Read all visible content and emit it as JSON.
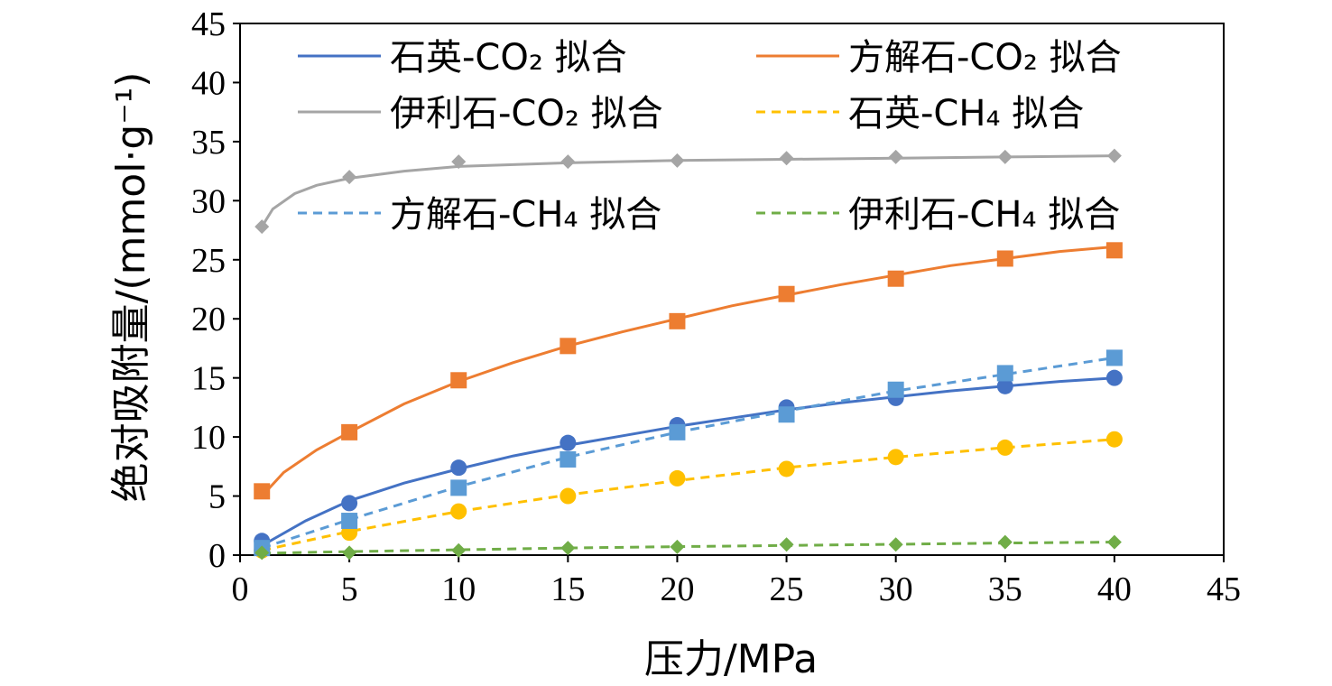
{
  "chart_data": {
    "type": "scatter",
    "xlabel": "压力/MPa",
    "ylabel": "绝对吸附量/(mmol·g⁻¹)",
    "xlim": [
      0,
      45
    ],
    "ylim": [
      0,
      45
    ],
    "xticks": [
      "0",
      "5",
      "10",
      "15",
      "20",
      "25",
      "30",
      "35",
      "40",
      "45"
    ],
    "yticks": [
      "0",
      "5",
      "10",
      "15",
      "20",
      "25",
      "30",
      "35",
      "40",
      "45"
    ],
    "grid": false,
    "legend_position": "top",
    "x": [
      1,
      5,
      10,
      15,
      20,
      25,
      30,
      35,
      40
    ],
    "series": [
      {
        "name": "石英-CO₂ 拟合",
        "color": "#4472C4",
        "marker": "circle",
        "dashed": false,
        "points": [
          1.2,
          4.4,
          7.4,
          9.5,
          11.0,
          12.5,
          13.3,
          14.3,
          15.0
        ],
        "fit": [
          [
            1,
            0.8
          ],
          [
            3,
            2.9
          ],
          [
            5,
            4.6
          ],
          [
            7.5,
            6.1
          ],
          [
            10,
            7.3
          ],
          [
            12.5,
            8.4
          ],
          [
            15,
            9.3
          ],
          [
            17.5,
            10.1
          ],
          [
            20,
            10.9
          ],
          [
            22.5,
            11.6
          ],
          [
            25,
            12.3
          ],
          [
            27.5,
            12.9
          ],
          [
            30,
            13.4
          ],
          [
            32.5,
            13.9
          ],
          [
            35,
            14.3
          ],
          [
            37.5,
            14.7
          ],
          [
            40,
            15.0
          ]
        ]
      },
      {
        "name": "方解石-CO₂ 拟合",
        "color": "#ED7D31",
        "marker": "square",
        "dashed": false,
        "points": [
          5.4,
          10.4,
          14.8,
          17.7,
          19.8,
          22.1,
          23.4,
          25.1,
          25.8
        ],
        "fit": [
          [
            1,
            5.0
          ],
          [
            2,
            7.0
          ],
          [
            3.5,
            8.9
          ],
          [
            5,
            10.4
          ],
          [
            7.5,
            12.8
          ],
          [
            10,
            14.7
          ],
          [
            12.5,
            16.3
          ],
          [
            15,
            17.7
          ],
          [
            17.5,
            18.9
          ],
          [
            20,
            20.0
          ],
          [
            22.5,
            21.1
          ],
          [
            25,
            22.0
          ],
          [
            27.5,
            22.9
          ],
          [
            30,
            23.7
          ],
          [
            32.5,
            24.5
          ],
          [
            35,
            25.1
          ],
          [
            37.5,
            25.7
          ],
          [
            40,
            26.1
          ]
        ]
      },
      {
        "name": "伊利石-CO₂ 拟合",
        "color": "#A5A5A5",
        "marker": "diamond",
        "dashed": false,
        "points": [
          27.8,
          32.0,
          33.3,
          33.3,
          33.4,
          33.6,
          33.7,
          33.7,
          33.8
        ],
        "fit": [
          [
            1,
            27.8
          ],
          [
            1.5,
            29.3
          ],
          [
            2.5,
            30.6
          ],
          [
            3.5,
            31.3
          ],
          [
            5,
            31.9
          ],
          [
            7.5,
            32.5
          ],
          [
            10,
            32.9
          ],
          [
            15,
            33.2
          ],
          [
            20,
            33.4
          ],
          [
            25,
            33.5
          ],
          [
            30,
            33.6
          ],
          [
            35,
            33.7
          ],
          [
            40,
            33.8
          ]
        ]
      },
      {
        "name": "石英-CH₄ 拟合",
        "color": "#FFC000",
        "marker": "circle",
        "dashed": true,
        "points": [
          0.4,
          1.9,
          3.7,
          5.0,
          6.5,
          7.3,
          8.3,
          9.1,
          9.8
        ],
        "fit": [
          [
            1,
            0.4
          ],
          [
            5,
            2.0
          ],
          [
            10,
            3.7
          ],
          [
            15,
            5.1
          ],
          [
            20,
            6.3
          ],
          [
            25,
            7.4
          ],
          [
            30,
            8.3
          ],
          [
            35,
            9.1
          ],
          [
            40,
            9.8
          ]
        ]
      },
      {
        "name": "方解石-CH₄ 拟合",
        "color": "#5B9BD5",
        "marker": "square",
        "dashed": true,
        "points": [
          0.6,
          2.9,
          5.7,
          8.1,
          10.4,
          11.9,
          14.0,
          15.4,
          16.7
        ],
        "fit": [
          [
            1,
            0.6
          ],
          [
            5,
            3.0
          ],
          [
            10,
            5.8
          ],
          [
            15,
            8.3
          ],
          [
            20,
            10.4
          ],
          [
            25,
            12.2
          ],
          [
            30,
            13.9
          ],
          [
            35,
            15.3
          ],
          [
            40,
            16.7
          ]
        ]
      },
      {
        "name": "伊利石-CH₄ 拟合",
        "color": "#70AD47",
        "marker": "diamond",
        "dashed": true,
        "points": [
          0.2,
          0.2,
          0.4,
          0.6,
          0.7,
          0.9,
          0.9,
          1.1,
          1.1
        ],
        "fit": [
          [
            1,
            0.15
          ],
          [
            5,
            0.3
          ],
          [
            10,
            0.45
          ],
          [
            15,
            0.6
          ],
          [
            20,
            0.72
          ],
          [
            25,
            0.82
          ],
          [
            30,
            0.92
          ],
          [
            35,
            1.02
          ],
          [
            40,
            1.1
          ]
        ]
      }
    ]
  }
}
